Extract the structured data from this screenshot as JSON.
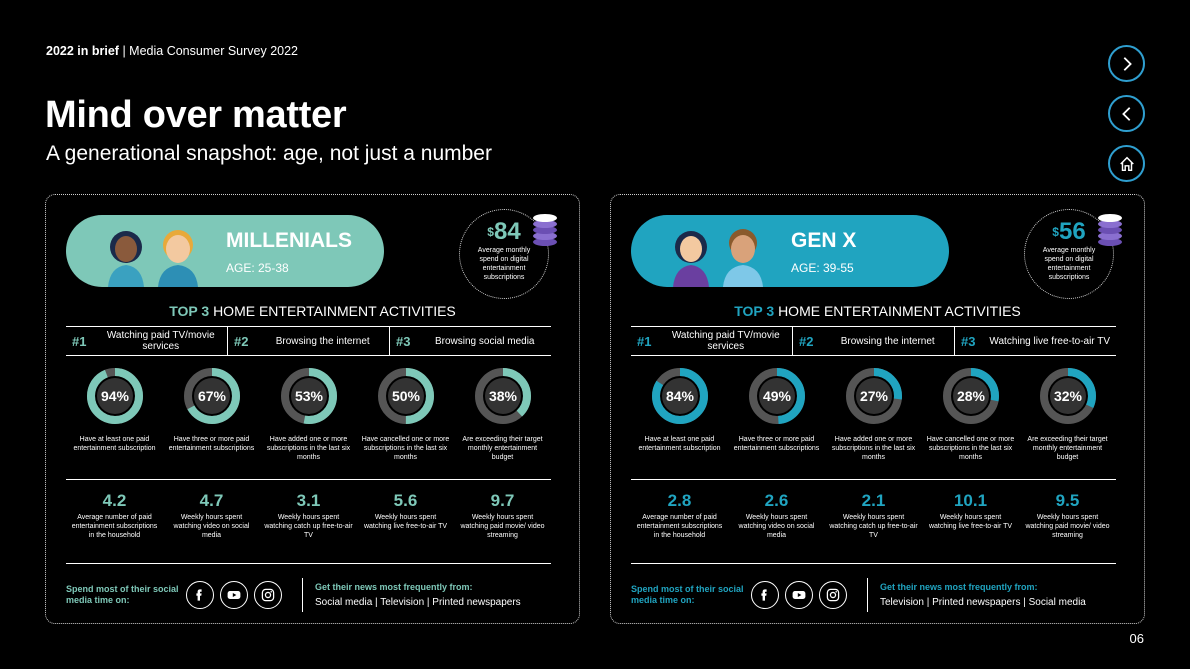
{
  "header": {
    "eyebrow_bold": "2022 in brief",
    "eyebrow_sep": "|",
    "eyebrow_rest": "Media Consumer Survey 2022",
    "title": "Mind over matter",
    "subtitle": "A generational snapshot: age, not just a number"
  },
  "nav": {
    "next_icon": "chevron-right-icon",
    "back_icon": "chevron-left-icon",
    "home_icon": "home-icon"
  },
  "colors": {
    "millenials": "#7ec8b8",
    "genx": "#20a4c0"
  },
  "top3_title_bold": "TOP 3",
  "top3_title_rest": "HOME ENTERTAINMENT ACTIVITIES",
  "panels": {
    "millenials": {
      "name": "MILLENIALS",
      "age": "AGE: 25-38",
      "spend_symbol": "$",
      "spend_value": "84",
      "spend_label": "Average monthly spend on digital entertainment subscriptions",
      "activities": [
        {
          "rank": "#1",
          "label": "Watching paid TV/movie services"
        },
        {
          "rank": "#2",
          "label": "Browsing the internet"
        },
        {
          "rank": "#3",
          "label": "Browsing social media"
        }
      ],
      "stats": [
        {
          "pct": "94%",
          "value": 94,
          "label": "Have at least one paid entertainment subscription"
        },
        {
          "pct": "67%",
          "value": 67,
          "label": "Have three or more paid entertainment subscriptions"
        },
        {
          "pct": "53%",
          "value": 53,
          "label": "Have added one or more subscriptions in the last six months"
        },
        {
          "pct": "50%",
          "value": 50,
          "label": "Have cancelled one or more subscriptions in the last six months"
        },
        {
          "pct": "38%",
          "value": 38,
          "label": "Are exceeding their target monthly entertainment budget"
        }
      ],
      "numbers": [
        {
          "value": "4.2",
          "label": "Average number of paid entertainment subscriptions in the household"
        },
        {
          "value": "4.7",
          "label": "Weekly hours spent watching video on social media"
        },
        {
          "value": "3.1",
          "label": "Weekly hours spent watching catch up free-to-air TV"
        },
        {
          "value": "5.6",
          "label": "Weekly hours spent watching live free-to-air TV"
        },
        {
          "value": "9.7",
          "label": "Weekly hours spent watching paid movie/ video streaming"
        }
      ],
      "social_label": "Spend most of their social media time on:",
      "news_label": "Get their news most frequently from:",
      "news_sources": "Social media | Television  | Printed newspapers"
    },
    "genx": {
      "name": "GEN X",
      "age": "AGE: 39-55",
      "spend_symbol": "$",
      "spend_value": "56",
      "spend_label": "Average monthly spend on digital entertainment subscriptions",
      "activities": [
        {
          "rank": "#1",
          "label": "Watching paid TV/movie services"
        },
        {
          "rank": "#2",
          "label": "Browsing the internet"
        },
        {
          "rank": "#3",
          "label": "Watching live free-to-air TV"
        }
      ],
      "stats": [
        {
          "pct": "84%",
          "value": 84,
          "label": "Have at least one paid entertainment subscription"
        },
        {
          "pct": "49%",
          "value": 49,
          "label": "Have three or more paid entertainment subscriptions"
        },
        {
          "pct": "27%",
          "value": 27,
          "label": "Have added one or more subscriptions in the last six months"
        },
        {
          "pct": "28%",
          "value": 28,
          "label": "Have cancelled one or more subscriptions in the last six months"
        },
        {
          "pct": "32%",
          "value": 32,
          "label": "Are exceeding their target monthly entertainment budget"
        }
      ],
      "numbers": [
        {
          "value": "2.8",
          "label": "Average number of paid entertainment subscriptions in the household"
        },
        {
          "value": "2.6",
          "label": "Weekly hours spent watching video on social media"
        },
        {
          "value": "2.1",
          "label": "Weekly hours spent watching catch up free-to-air TV"
        },
        {
          "value": "10.1",
          "label": "Weekly hours spent watching live free-to-air TV"
        },
        {
          "value": "9.5",
          "label": "Weekly hours spent watching paid movie/ video streaming"
        }
      ],
      "social_label": "Spend most of their social media time on:",
      "news_label": "Get their news most frequently from:",
      "news_sources": "Television | Printed newspapers | Social media"
    }
  },
  "social_icons": [
    "facebook-icon",
    "youtube-icon",
    "instagram-icon"
  ],
  "page_number": "06"
}
